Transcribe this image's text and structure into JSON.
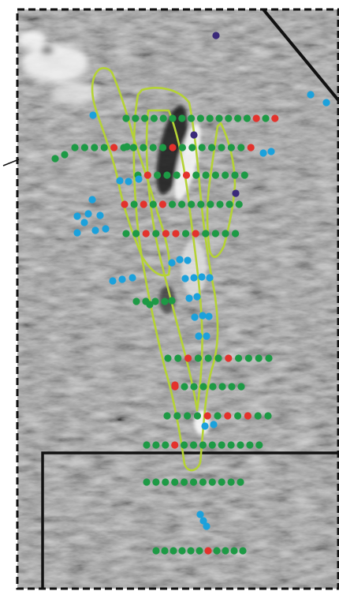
{
  "figure": {
    "description_visible_text": "",
    "legend": [],
    "colors": {
      "background_gray": "#8f8f8f",
      "frame": "#111111",
      "outline": "#b5d334",
      "point_green": "#1d9a45",
      "point_red": "#e3322c",
      "point_blue": "#1ba1dc",
      "point_purple": "#3b2a7a",
      "bright_feature": "#f4f4f4",
      "dark_feature": "#1a1a1a"
    }
  }
}
